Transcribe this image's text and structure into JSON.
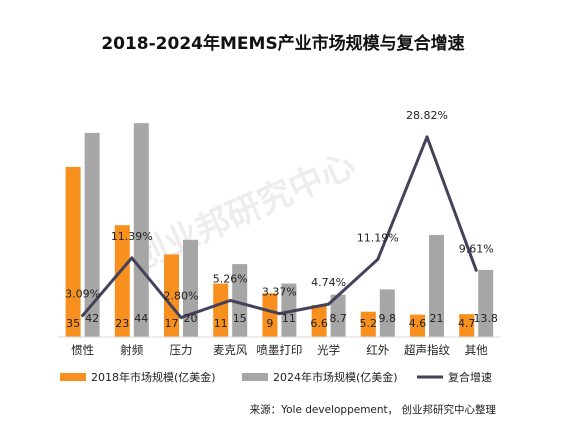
{
  "chart_data": {
    "type": "bar",
    "title": "2018-2024年MEMS产业市场规模与复合增速",
    "categories": [
      "惯性",
      "射频",
      "压力",
      "麦克风",
      "喷墨打印",
      "光学",
      "红外",
      "超声指纹",
      "其他"
    ],
    "series": [
      {
        "name": "2018年市场规模(亿美金)",
        "type": "bar",
        "color": "#F7901E",
        "values": [
          35,
          23,
          17,
          11,
          9,
          6.6,
          5.2,
          4.6,
          4.7
        ],
        "labels": [
          "35",
          "23",
          "17",
          "11",
          "9",
          "6.6",
          "5.2",
          "4.6",
          "4.7"
        ]
      },
      {
        "name": "2024年市场规模(亿美金)",
        "type": "bar",
        "color": "#A6A6A6",
        "values": [
          42,
          44,
          20,
          15,
          11,
          8.7,
          9.8,
          21,
          13.8
        ],
        "labels": [
          "42",
          "44",
          "20",
          "15",
          "11",
          "8.7",
          "9.8",
          "21",
          "13.8"
        ]
      },
      {
        "name": "复合增速",
        "type": "line",
        "color": "#44425A",
        "values": [
          3.09,
          11.39,
          2.8,
          5.26,
          3.37,
          4.74,
          11.19,
          28.82,
          9.61
        ],
        "labels": [
          "3.09%",
          "11.39%",
          "2.80%",
          "5.26%",
          "3.37%",
          "4.74%",
          "11.19%",
          "28.82%",
          "9.61%"
        ]
      }
    ],
    "ylim": [
      0,
      50
    ],
    "rate_ylim": [
      0,
      35
    ],
    "grid": false,
    "legend": "bottom"
  },
  "source": "来源：Yole developpement， 创业邦研究中心整理",
  "watermark": "创业邦研究中心"
}
